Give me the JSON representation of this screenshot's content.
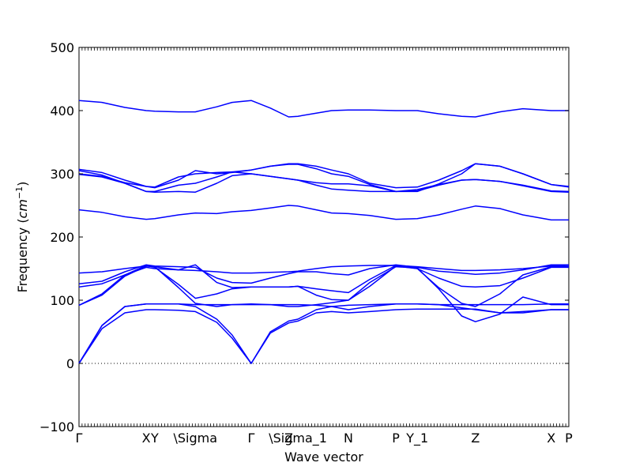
{
  "chart_data": {
    "type": "line",
    "title": "",
    "xlabel": "Wave vector",
    "ylabel_text": "Frequency (",
    "ylabel_unit": "cm",
    "ylabel_exp": "−1",
    "ylabel_close": ")",
    "ylim": [
      -100,
      500
    ],
    "xlim": [
      0,
      6.4
    ],
    "y_ticks": [
      -100,
      0,
      100,
      200,
      300,
      400,
      500
    ],
    "y_tick_labels": [
      "−100",
      "0",
      "100",
      "200",
      "300",
      "400",
      "500"
    ],
    "x_ticks": [
      {
        "x": 0.0,
        "label": "Γ"
      },
      {
        "x": 0.878,
        "label": "X"
      },
      {
        "x": 0.99,
        "label": "Y"
      },
      {
        "x": 1.52,
        "label": "\\Sigma"
      },
      {
        "x": 2.25,
        "label": "Γ"
      },
      {
        "x": 2.74,
        "label": "Z"
      },
      {
        "x": 2.86,
        "label": "\\Sigma_1"
      },
      {
        "x": 3.52,
        "label": "N"
      },
      {
        "x": 4.14,
        "label": "P"
      },
      {
        "x": 4.42,
        "label": "Y_1"
      },
      {
        "x": 5.18,
        "label": "Z"
      },
      {
        "x": 6.17,
        "label": "X"
      },
      {
        "x": 6.4,
        "label": "P"
      }
    ],
    "zero_line": {
      "y": 0,
      "style": "dotted"
    },
    "line_color": "#0000ff",
    "grid": false,
    "series": [
      {
        "x": [
          0,
          0.3,
          0.6,
          0.878,
          0.99,
          1.3,
          1.52,
          1.8,
          2.0,
          2.25,
          2.5,
          2.74,
          2.86,
          3.1,
          3.3,
          3.52,
          3.8,
          4.14,
          4.42,
          4.7,
          5.0,
          5.18,
          5.5,
          5.8,
          6.17,
          6.4
        ],
        "y": [
          416,
          413,
          405,
          400,
          399,
          398,
          398,
          406,
          413,
          416,
          404,
          390,
          391,
          396,
          400,
          401,
          401,
          400,
          400,
          395,
          391,
          390,
          398,
          403,
          400,
          400
        ]
      },
      {
        "x": [
          0,
          0.3,
          0.6,
          0.878,
          0.99,
          1.3,
          1.52,
          1.8,
          2.0,
          2.25,
          2.5,
          2.74,
          2.86,
          3.1,
          3.3,
          3.52,
          3.8,
          4.14,
          4.42,
          4.7,
          5.0,
          5.18,
          5.5,
          5.8,
          6.17,
          6.4
        ],
        "y": [
          307,
          302,
          290,
          280,
          278,
          290,
          305,
          300,
          302,
          306,
          312,
          316,
          316,
          312,
          306,
          300,
          285,
          278,
          279,
          290,
          305,
          316,
          312,
          300,
          283,
          280
        ]
      },
      {
        "x": [
          0,
          0.3,
          0.6,
          0.878,
          0.99,
          1.3,
          1.52,
          1.8,
          2.0,
          2.25,
          2.5,
          2.74,
          2.86,
          3.1,
          3.3,
          3.52,
          3.8,
          4.14,
          4.42,
          4.7,
          5.0,
          5.18,
          5.5,
          5.8,
          6.17,
          6.4
        ],
        "y": [
          305,
          298,
          285,
          272,
          272,
          282,
          285,
          295,
          303,
          306,
          312,
          315,
          315,
          308,
          300,
          296,
          283,
          272,
          272,
          284,
          300,
          316,
          312,
          300,
          283,
          279
        ]
      },
      {
        "x": [
          0,
          0.3,
          0.6,
          0.878,
          0.99,
          1.3,
          1.52,
          1.8,
          2.0,
          2.25,
          2.5,
          2.74,
          2.86,
          3.1,
          3.3,
          3.52,
          3.8,
          4.14,
          4.42,
          4.7,
          5.0,
          5.18,
          5.5,
          5.8,
          6.17,
          6.4
        ],
        "y": [
          300,
          296,
          286,
          280,
          279,
          295,
          300,
          302,
          303,
          300,
          296,
          292,
          290,
          282,
          276,
          274,
          272,
          272,
          275,
          283,
          290,
          291,
          288,
          282,
          273,
          272
        ]
      },
      {
        "x": [
          0,
          0.3,
          0.6,
          0.878,
          0.99,
          1.3,
          1.52,
          1.8,
          2.0,
          2.25,
          2.5,
          2.74,
          2.86,
          3.1,
          3.3,
          3.52,
          3.8,
          4.14,
          4.42,
          4.7,
          5.0,
          5.18,
          5.5,
          5.8,
          6.17,
          6.4
        ],
        "y": [
          299,
          295,
          285,
          272,
          271,
          272,
          271,
          285,
          297,
          300,
          296,
          292,
          290,
          286,
          284,
          284,
          281,
          272,
          273,
          282,
          290,
          291,
          288,
          281,
          272,
          271
        ]
      },
      {
        "x": [
          0,
          0.3,
          0.6,
          0.878,
          0.99,
          1.3,
          1.52,
          1.8,
          2.0,
          2.25,
          2.5,
          2.74,
          2.86,
          3.1,
          3.3,
          3.52,
          3.8,
          4.14,
          4.42,
          4.7,
          5.0,
          5.18,
          5.5,
          5.8,
          6.17,
          6.4
        ],
        "y": [
          243,
          239,
          232,
          228,
          229,
          235,
          238,
          237,
          240,
          242,
          246,
          250,
          249,
          243,
          238,
          237,
          234,
          228,
          229,
          235,
          244,
          249,
          245,
          235,
          227,
          227
        ]
      },
      {
        "x": [
          0,
          0.3,
          0.6,
          0.878,
          0.99,
          1.3,
          1.52,
          1.8,
          2.0,
          2.25,
          2.5,
          2.74,
          2.86,
          3.1,
          3.3,
          3.52,
          3.8,
          4.14,
          4.42,
          4.7,
          5.0,
          5.18,
          5.5,
          5.8,
          6.17,
          6.4
        ],
        "y": [
          143,
          145,
          150,
          154,
          153,
          148,
          147,
          145,
          143,
          143,
          144,
          145,
          146,
          150,
          153,
          154,
          155,
          155,
          153,
          150,
          147,
          147,
          148,
          150,
          154,
          155
        ]
      },
      {
        "x": [
          0,
          0.3,
          0.6,
          0.878,
          0.99,
          1.3,
          1.52,
          1.8,
          2.0,
          2.25,
          2.5,
          2.74,
          2.86,
          3.1,
          3.3,
          3.52,
          3.8,
          4.14,
          4.42,
          4.7,
          5.0,
          5.18,
          5.5,
          5.8,
          6.17,
          6.4
        ],
        "y": [
          126,
          130,
          145,
          156,
          154,
          153,
          152,
          135,
          128,
          127,
          135,
          142,
          145,
          145,
          142,
          140,
          150,
          156,
          152,
          146,
          143,
          141,
          143,
          148,
          156,
          156
        ]
      },
      {
        "x": [
          0,
          0.3,
          0.6,
          0.878,
          0.99,
          1.3,
          1.52,
          1.8,
          2.0,
          2.25,
          2.5,
          2.74,
          2.86,
          3.1,
          3.3,
          3.52,
          3.8,
          4.14,
          4.42,
          4.7,
          5.0,
          5.18,
          5.5,
          5.8,
          6.17,
          6.4
        ],
        "y": [
          121,
          126,
          140,
          152,
          150,
          148,
          156,
          128,
          120,
          121,
          121,
          121,
          122,
          118,
          115,
          112,
          133,
          155,
          150,
          135,
          122,
          121,
          123,
          135,
          152,
          152
        ]
      },
      {
        "x": [
          0,
          0.3,
          0.6,
          0.878,
          0.99,
          1.3,
          1.52,
          1.8,
          2.0,
          2.25,
          2.5,
          2.74,
          2.86,
          3.1,
          3.3,
          3.52,
          3.8,
          4.14,
          4.42,
          4.7,
          5.0,
          5.18,
          5.5,
          5.8,
          6.17,
          6.4
        ],
        "y": [
          92,
          110,
          140,
          155,
          152,
          125,
          103,
          110,
          118,
          121,
          121,
          121,
          122,
          108,
          101,
          100,
          122,
          154,
          150,
          120,
          95,
          90,
          110,
          140,
          153,
          153
        ]
      },
      {
        "x": [
          0,
          0.3,
          0.6,
          0.878,
          0.99,
          1.3,
          1.52,
          1.8,
          2.0,
          2.25,
          2.5,
          2.74,
          2.86,
          3.1,
          3.3,
          3.52,
          3.8,
          4.14,
          4.42,
          4.7,
          5.0,
          5.18,
          5.5,
          5.8,
          6.17,
          6.4
        ],
        "y": [
          92,
          108,
          138,
          154,
          153,
          120,
          95,
          90,
          93,
          94,
          93,
          90,
          90,
          93,
          96,
          100,
          128,
          153,
          151,
          118,
          75,
          66,
          78,
          105,
          93,
          93
        ]
      },
      {
        "x": [
          0,
          0.3,
          0.6,
          0.878,
          0.99,
          1.3,
          1.52,
          1.8,
          2.0,
          2.25,
          2.5,
          2.74,
          2.86,
          3.1,
          3.3,
          3.52,
          3.8,
          4.14,
          4.42,
          4.7,
          5.0,
          5.18,
          5.5,
          5.8,
          6.17,
          6.4
        ],
        "y": [
          0,
          60,
          90,
          94,
          94,
          94,
          93,
          93,
          93,
          93,
          93,
          93,
          93,
          92,
          90,
          85,
          90,
          94,
          94,
          93,
          93,
          93,
          93,
          93,
          94,
          94
        ]
      },
      {
        "x": [
          0,
          0.3,
          0.6,
          0.878,
          0.99,
          1.3,
          1.52,
          1.8,
          2.0,
          2.25,
          2.5,
          2.74,
          2.86,
          3.1,
          3.3,
          3.52,
          3.8,
          4.14,
          4.42,
          4.7,
          5.0,
          5.18,
          5.5,
          5.8,
          6.17,
          6.4
        ],
        "y": [
          0,
          60,
          90,
          94,
          94,
          94,
          90,
          70,
          45,
          0,
          50,
          67,
          70,
          85,
          90,
          92,
          93,
          94,
          94,
          93,
          88,
          85,
          80,
          82,
          85,
          85
        ]
      },
      {
        "x": [
          0,
          0.3,
          0.6,
          0.878,
          0.99,
          1.3,
          1.52,
          1.8,
          2.0,
          2.25,
          2.5,
          2.74,
          2.86,
          3.1,
          3.3,
          3.52,
          3.8,
          4.14,
          4.42,
          4.7,
          5.0,
          5.18,
          5.5,
          5.8,
          6.17,
          6.4
        ],
        "y": [
          0,
          55,
          80,
          85,
          85,
          84,
          82,
          65,
          40,
          0,
          48,
          64,
          67,
          80,
          82,
          80,
          82,
          85,
          86,
          86,
          86,
          86,
          80,
          80,
          85,
          85
        ]
      }
    ]
  }
}
